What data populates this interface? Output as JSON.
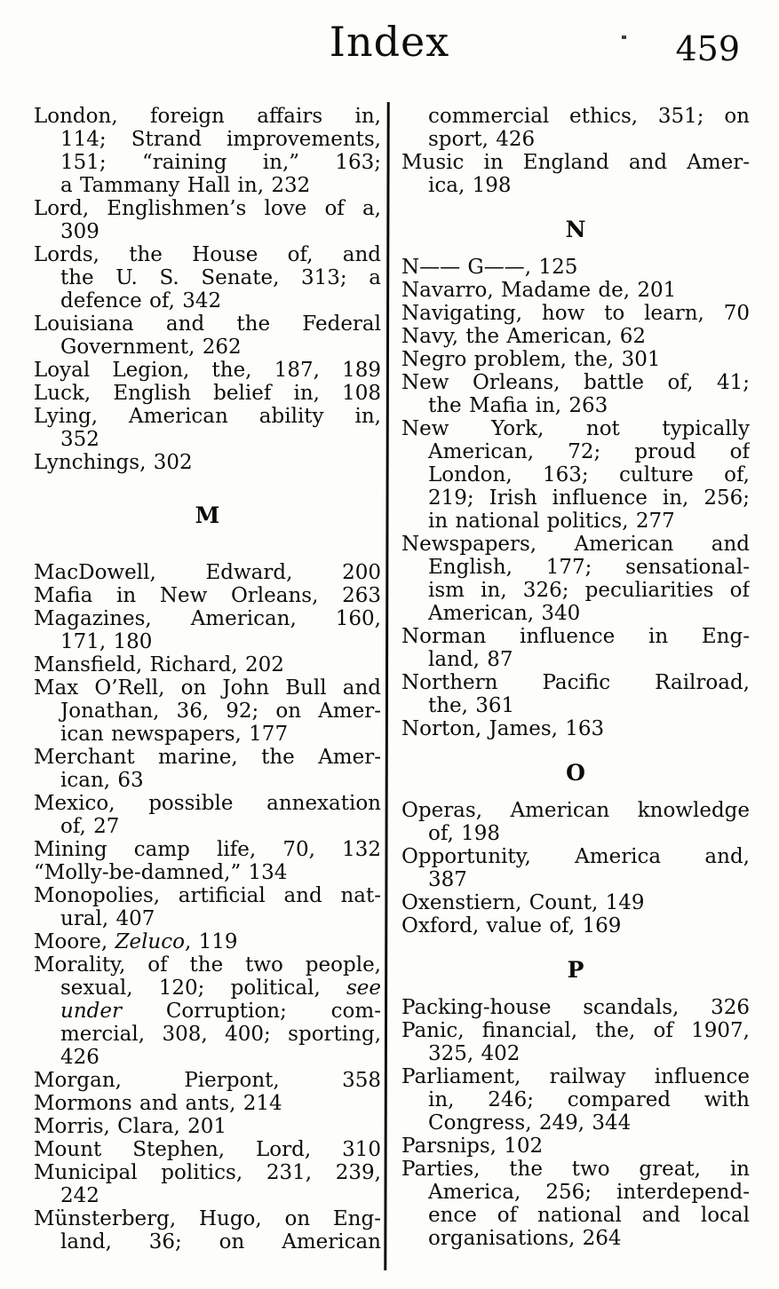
{
  "header": {
    "title": "Index",
    "page_number": "459"
  },
  "colors": {
    "ink": "#0c0c0c",
    "paper": "#fdfdfa"
  },
  "columns": {
    "left": [
      {
        "text": "London, foreign affairs in,",
        "indent": false,
        "justify": true
      },
      {
        "text": "114; Strand improvements,",
        "indent": true,
        "justify": true
      },
      {
        "text": "151; “raining in,” 163;",
        "indent": true,
        "justify": true
      },
      {
        "text": "a Tammany Hall in, 232",
        "indent": true,
        "justify": false
      },
      {
        "text": "Lord, Englishmen’s love of a,",
        "indent": false,
        "justify": true
      },
      {
        "text": "309",
        "indent": true,
        "justify": false
      },
      {
        "text": "Lords, the House of, and",
        "indent": false,
        "justify": true
      },
      {
        "text": "the U. S. Senate, 313; a",
        "indent": true,
        "justify": true
      },
      {
        "text": "defence of, 342",
        "indent": true,
        "justify": false
      },
      {
        "text": "Louisiana and the Federal",
        "indent": false,
        "justify": true
      },
      {
        "text": "Government, 262",
        "indent": true,
        "justify": false
      },
      {
        "text": "Loyal Legion, the, 187, 189",
        "indent": false,
        "justify": true
      },
      {
        "text": "Luck, English belief in, 108",
        "indent": false,
        "justify": true
      },
      {
        "text": "Lying, American ability in,",
        "indent": false,
        "justify": true
      },
      {
        "text": "352",
        "indent": true,
        "justify": false
      },
      {
        "text": "Lynchings, 302",
        "indent": false,
        "justify": false
      },
      {
        "heading": "M"
      },
      {
        "text": "MacDowell, Edward, 200",
        "indent": false,
        "justify": true
      },
      {
        "text": "Mafia in New Orleans, 263",
        "indent": false,
        "justify": true
      },
      {
        "text": "Magazines, American, 160,",
        "indent": false,
        "justify": true
      },
      {
        "text": "171, 180",
        "indent": true,
        "justify": false
      },
      {
        "text": "Mansfield, Richard, 202",
        "indent": false,
        "justify": false
      },
      {
        "text": "Max O’Rell, on John Bull and",
        "indent": false,
        "justify": true
      },
      {
        "text": "Jonathan, 36, 92; on Amer-",
        "indent": true,
        "justify": true
      },
      {
        "text": "ican newspapers, 177",
        "indent": true,
        "justify": false
      },
      {
        "text": "Merchant marine, the Amer-",
        "indent": false,
        "justify": true
      },
      {
        "text": "ican, 63",
        "indent": true,
        "justify": false
      },
      {
        "text": "Mexico, possible annexation",
        "indent": false,
        "justify": true
      },
      {
        "text": "of, 27",
        "indent": true,
        "justify": false
      },
      {
        "text": "Mining camp life, 70, 132",
        "indent": false,
        "justify": true
      },
      {
        "text": "“Molly-be-damned,” 134",
        "indent": false,
        "justify": false
      },
      {
        "text": "Monopolies, artificial and nat-",
        "indent": false,
        "justify": true
      },
      {
        "text": "ural, 407",
        "indent": true,
        "justify": false
      },
      {
        "text": "Moore, *Zeluco*, 119",
        "indent": false,
        "justify": false
      },
      {
        "text": "Morality, of the two people,",
        "indent": false,
        "justify": true
      },
      {
        "text": "sexual, 120; political, *see*",
        "indent": true,
        "justify": true
      },
      {
        "text": "*under* Corruption; com-",
        "indent": true,
        "justify": true
      },
      {
        "text": "mercial, 308, 400; sporting,",
        "indent": true,
        "justify": true
      },
      {
        "text": "426",
        "indent": true,
        "justify": false
      },
      {
        "text": "Morgan, Pierpont, 358",
        "indent": false,
        "justify": true
      },
      {
        "text": "Mormons and ants, 214",
        "indent": false,
        "justify": false
      },
      {
        "text": "Morris, Clara, 201",
        "indent": false,
        "justify": false
      },
      {
        "text": "Mount Stephen, Lord, 310",
        "indent": false,
        "justify": true
      },
      {
        "text": "Municipal politics, 231, 239,",
        "indent": false,
        "justify": true
      },
      {
        "text": "242",
        "indent": true,
        "justify": false
      },
      {
        "text": "Münsterberg, Hugo, on Eng-",
        "indent": false,
        "justify": true
      },
      {
        "text": "land, 36; on American",
        "indent": true,
        "justify": true
      }
    ],
    "right": [
      {
        "text": "commercial ethics, 351; on",
        "indent": true,
        "justify": true
      },
      {
        "text": "sport, 426",
        "indent": true,
        "justify": false
      },
      {
        "text": "Music in England and Amer-",
        "indent": false,
        "justify": true
      },
      {
        "text": "ica, 198",
        "indent": true,
        "justify": false
      },
      {
        "heading": "N"
      },
      {
        "text": "N—— G——, 125",
        "indent": false,
        "justify": false
      },
      {
        "text": "Navarro, Madame de, 201",
        "indent": false,
        "justify": false
      },
      {
        "text": "Navigating, how to learn, 70",
        "indent": false,
        "justify": true
      },
      {
        "text": "Navy, the American, 62",
        "indent": false,
        "justify": false
      },
      {
        "text": "Negro problem, the, 301",
        "indent": false,
        "justify": false
      },
      {
        "text": "New Orleans, battle of, 41;",
        "indent": false,
        "justify": true
      },
      {
        "text": "the Mafia in, 263",
        "indent": true,
        "justify": false
      },
      {
        "text": "New York, not typically",
        "indent": false,
        "justify": true
      },
      {
        "text": "American, 72; proud of",
        "indent": true,
        "justify": true
      },
      {
        "text": "London, 163; culture of,",
        "indent": true,
        "justify": true
      },
      {
        "text": "219; Irish influence in, 256;",
        "indent": true,
        "justify": true
      },
      {
        "text": "in national politics, 277",
        "indent": true,
        "justify": false
      },
      {
        "text": "Newspapers, American and",
        "indent": false,
        "justify": true
      },
      {
        "text": "English, 177; sensational-",
        "indent": true,
        "justify": true
      },
      {
        "text": "ism in, 326; peculiarities of",
        "indent": true,
        "justify": true
      },
      {
        "text": "American, 340",
        "indent": true,
        "justify": false
      },
      {
        "text": "Norman influence in Eng-",
        "indent": false,
        "justify": true
      },
      {
        "text": "land, 87",
        "indent": true,
        "justify": false
      },
      {
        "text": "Northern Pacific Railroad,",
        "indent": false,
        "justify": true
      },
      {
        "text": "the, 361",
        "indent": true,
        "justify": false
      },
      {
        "text": "Norton, James, 163",
        "indent": false,
        "justify": false
      },
      {
        "heading": "O"
      },
      {
        "text": "Operas, American knowledge",
        "indent": false,
        "justify": true
      },
      {
        "text": "of, 198",
        "indent": true,
        "justify": false
      },
      {
        "text": "Opportunity, America and,",
        "indent": false,
        "justify": true
      },
      {
        "text": "387",
        "indent": true,
        "justify": false
      },
      {
        "text": "Oxenstiern, Count, 149",
        "indent": false,
        "justify": false
      },
      {
        "text": "Oxford, value of, 169",
        "indent": false,
        "justify": false
      },
      {
        "heading": "P"
      },
      {
        "text": "Packing-house scandals, 326",
        "indent": false,
        "justify": true
      },
      {
        "text": "Panic, financial, the, of 1907,",
        "indent": false,
        "justify": true
      },
      {
        "text": "325, 402",
        "indent": true,
        "justify": false
      },
      {
        "text": "Parliament, railway influence",
        "indent": false,
        "justify": true
      },
      {
        "text": "in, 246; compared with",
        "indent": true,
        "justify": true
      },
      {
        "text": "Congress, 249, 344",
        "indent": true,
        "justify": false
      },
      {
        "text": "Parsnips, 102",
        "indent": false,
        "justify": false
      },
      {
        "text": "Parties, the two great, in",
        "indent": false,
        "justify": true
      },
      {
        "text": "America, 256; interdepend-",
        "indent": true,
        "justify": true
      },
      {
        "text": "ence of national and local",
        "indent": true,
        "justify": true
      },
      {
        "text": "organisations, 264",
        "indent": true,
        "justify": false
      }
    ]
  }
}
